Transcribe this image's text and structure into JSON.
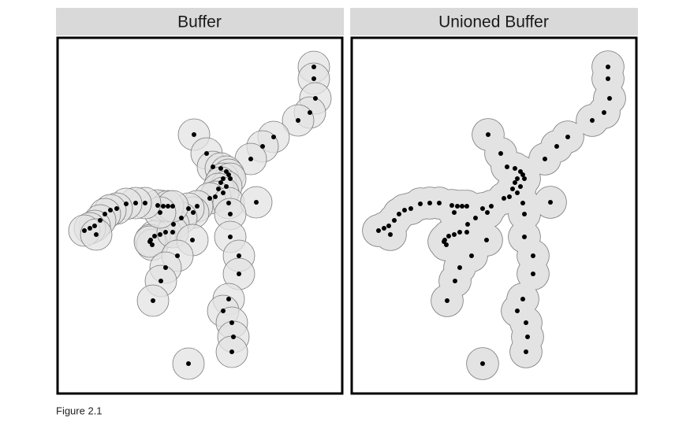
{
  "panels": [
    {
      "title": "Buffer"
    },
    {
      "title": "Unioned Buffer"
    }
  ],
  "caption": "Figure 2.1"
}
